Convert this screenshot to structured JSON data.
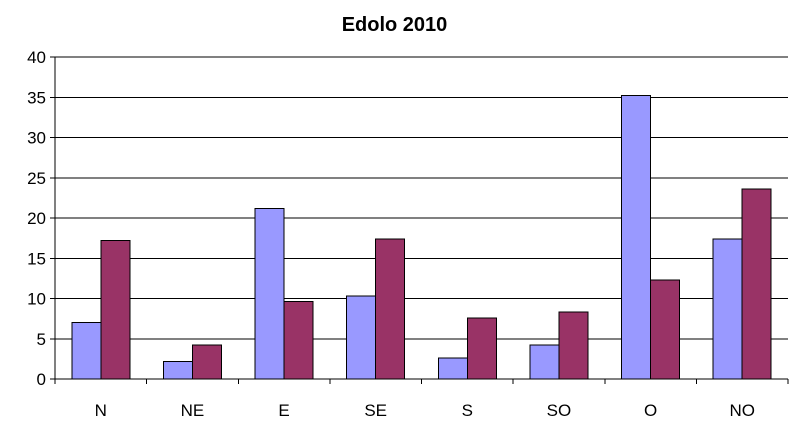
{
  "chart_data": {
    "type": "bar",
    "title": "Edolo 2010",
    "xlabel": "",
    "ylabel": "",
    "categories": [
      "N",
      "NE",
      "E",
      "SE",
      "S",
      "SO",
      "O",
      "NO"
    ],
    "series": [
      {
        "values": [
          7.0,
          2.2,
          21.2,
          10.3,
          2.6,
          4.2,
          35.2,
          17.4
        ]
      },
      {
        "values": [
          17.2,
          4.2,
          9.6,
          17.4,
          7.6,
          8.3,
          12.3,
          23.6
        ]
      }
    ],
    "ylim": [
      0,
      40
    ],
    "yticks": [
      0,
      5,
      10,
      15,
      20,
      25,
      30,
      35,
      40
    ],
    "grid": true,
    "legend": "none",
    "colors": {
      "series_1": "#9999ff",
      "series_2": "#993366",
      "grid": "#000000",
      "background": "#ffffff"
    }
  }
}
